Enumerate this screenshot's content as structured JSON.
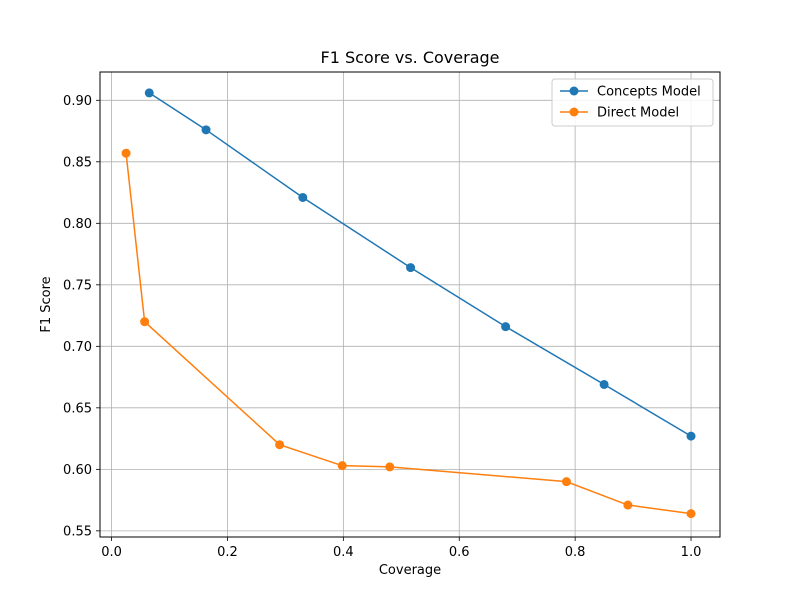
{
  "chart_data": {
    "type": "line",
    "title": "F1 Score vs. Coverage",
    "xlabel": "Coverage",
    "ylabel": "F1 Score",
    "xlim": [
      -0.02,
      1.05
    ],
    "ylim": [
      0.545,
      0.923
    ],
    "xticks": [
      0.0,
      0.2,
      0.4,
      0.6,
      0.8,
      1.0
    ],
    "xtick_labels": [
      "0.0",
      "0.2",
      "0.4",
      "0.6",
      "0.8",
      "1.0"
    ],
    "yticks": [
      0.55,
      0.6,
      0.65,
      0.7,
      0.75,
      0.8,
      0.85,
      0.9
    ],
    "ytick_labels": [
      "0.55",
      "0.60",
      "0.65",
      "0.70",
      "0.75",
      "0.80",
      "0.85",
      "0.90"
    ],
    "grid": true,
    "legend_position": "top-right",
    "series": [
      {
        "name": "Concepts Model",
        "color": "#1f77b4",
        "x": [
          0.065,
          0.163,
          0.33,
          0.516,
          0.68,
          0.85,
          1.0
        ],
        "y": [
          0.906,
          0.876,
          0.821,
          0.764,
          0.716,
          0.669,
          0.627
        ]
      },
      {
        "name": "Direct Model",
        "color": "#ff7f0e",
        "x": [
          0.025,
          0.057,
          0.29,
          0.398,
          0.48,
          0.785,
          0.891,
          1.0
        ],
        "y": [
          0.857,
          0.72,
          0.62,
          0.603,
          0.602,
          0.59,
          0.571,
          0.564
        ]
      }
    ]
  }
}
